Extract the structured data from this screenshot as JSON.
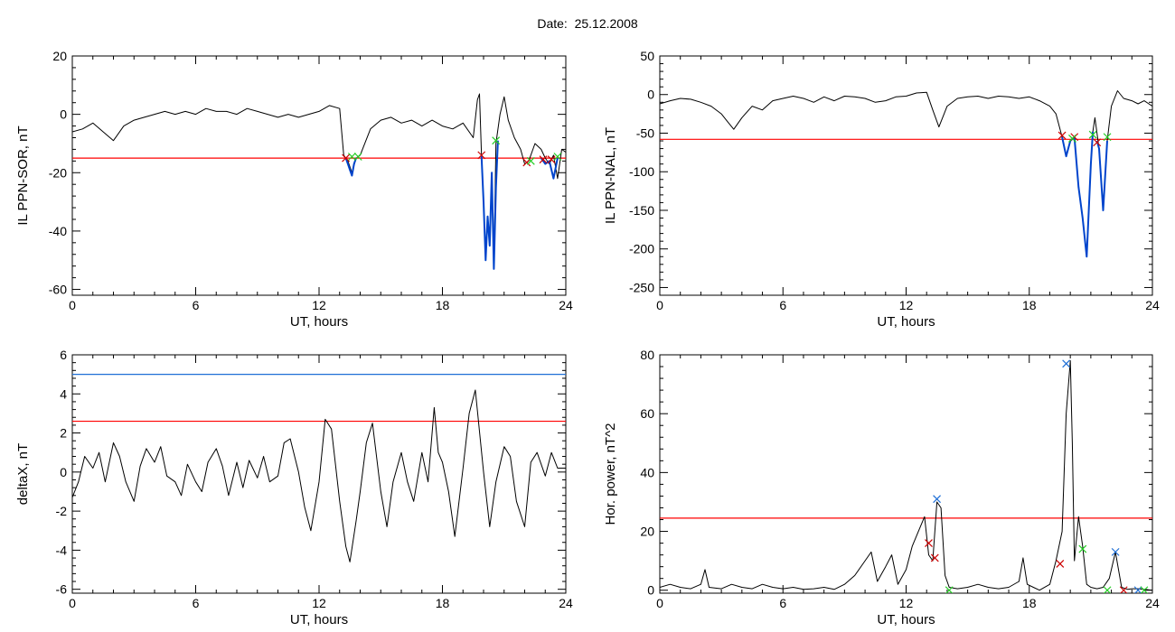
{
  "page_title": "Date:  25.12.2008",
  "chart_data": [
    {
      "type": "line",
      "xlabel": "UT, hours",
      "ylabel": "IL PPN-SOR, nT",
      "xlim": [
        0,
        24
      ],
      "ylim": [
        -62,
        20
      ],
      "xticks": [
        0,
        6,
        12,
        18,
        24
      ],
      "yticks": [
        -60,
        -40,
        -20,
        0,
        20
      ],
      "colors": {
        "trace": "#000000",
        "threshold": "#ff0000",
        "highlight": "#0044cc",
        "start_marker": "#cc0000",
        "end_marker": "#22cc22"
      },
      "threshold": -15,
      "series": [
        {
          "role": "trace",
          "x": [
            0,
            0.5,
            1,
            1.5,
            2,
            2.5,
            3,
            3.5,
            4,
            4.5,
            5,
            5.5,
            6,
            6.5,
            7,
            7.5,
            8,
            8.5,
            9,
            9.5,
            10,
            10.5,
            11,
            11.5,
            12,
            12.5,
            13,
            13.2,
            13.4,
            13.6,
            13.8,
            14,
            14.5,
            15,
            15.5,
            16,
            16.5,
            17,
            17.5,
            18,
            18.5,
            19,
            19.5,
            19.7,
            19.8,
            19.9,
            20,
            20.1,
            20.2,
            20.3,
            20.4,
            20.5,
            20.6,
            20.8,
            21,
            21.2,
            21.5,
            21.8,
            22,
            22.2,
            22.5,
            22.8,
            23,
            23.2,
            23.4,
            23.6,
            23.8,
            24
          ],
          "y": [
            -6,
            -5,
            -3,
            -6,
            -9,
            -4,
            -2,
            -1,
            0,
            1,
            0,
            1,
            0,
            2,
            1,
            1,
            0,
            2,
            1,
            0,
            -1,
            0,
            -1,
            0,
            1,
            3,
            2,
            -14,
            -16,
            -20,
            -15,
            -14,
            -5,
            -2,
            -1,
            -3,
            -2,
            -4,
            -2,
            -4,
            -5,
            -3,
            -8,
            5,
            7,
            -14,
            -30,
            -50,
            -35,
            -45,
            -20,
            -53,
            -10,
            0,
            6,
            -2,
            -8,
            -12,
            -17,
            -16,
            -10,
            -12,
            -15,
            -17,
            -14,
            -22,
            -12,
            -13
          ]
        },
        {
          "role": "highlight",
          "x": [
            13.3,
            13.4,
            13.5,
            13.6,
            13.7,
            13.8
          ],
          "y": [
            -15,
            -17,
            -19,
            -21,
            -17,
            -15
          ]
        },
        {
          "role": "highlight",
          "x": [
            19.9,
            20,
            20.1,
            20.2,
            20.3,
            20.4,
            20.5,
            20.6,
            20.7
          ],
          "y": [
            -14,
            -30,
            -50,
            -35,
            -45,
            -20,
            -53,
            -25,
            -9
          ]
        },
        {
          "role": "highlight",
          "x": [
            22.8,
            23,
            23.2,
            23.4,
            23.6
          ],
          "y": [
            -15,
            -17,
            -16,
            -22,
            -15
          ]
        }
      ],
      "markers": {
        "start": {
          "x": [
            13.3,
            19.9,
            22.1,
            22.9,
            23.3
          ],
          "y": [
            -15,
            -14,
            -16.5,
            -15.5,
            -15.5
          ]
        },
        "end": {
          "x": [
            13.6,
            13.9,
            20.6,
            22.3,
            23.6
          ],
          "y": [
            -14.5,
            -14.5,
            -9,
            -16,
            -14.5
          ]
        }
      }
    },
    {
      "type": "line",
      "xlabel": "UT, hours",
      "ylabel": "IL PPN-NAL, nT",
      "xlim": [
        0,
        24
      ],
      "ylim": [
        -260,
        50
      ],
      "xticks": [
        0,
        6,
        12,
        18,
        24
      ],
      "yticks": [
        -250,
        -200,
        -150,
        -100,
        -50,
        0,
        50
      ],
      "colors": {
        "trace": "#000000",
        "threshold": "#ff0000",
        "highlight": "#0044cc",
        "start_marker": "#cc0000",
        "end_marker": "#22cc22"
      },
      "threshold": -58,
      "series": [
        {
          "role": "trace",
          "x": [
            0,
            0.5,
            1,
            1.5,
            2,
            2.5,
            3,
            3.3,
            3.6,
            4,
            4.5,
            5,
            5.5,
            6,
            6.5,
            7,
            7.5,
            8,
            8.5,
            9,
            9.5,
            10,
            10.5,
            11,
            11.5,
            12,
            12.5,
            13,
            13.3,
            13.6,
            14,
            14.5,
            15,
            15.5,
            16,
            16.5,
            17,
            17.5,
            18,
            18.5,
            19,
            19.3,
            19.6,
            19.8,
            20,
            20.2,
            20.4,
            20.6,
            20.8,
            21,
            21.1,
            21.2,
            21.4,
            21.6,
            21.8,
            22,
            22.3,
            22.6,
            23,
            23.3,
            23.6,
            24
          ],
          "y": [
            -12,
            -8,
            -5,
            -6,
            -10,
            -15,
            -25,
            -35,
            -45,
            -30,
            -15,
            -20,
            -8,
            -5,
            -2,
            -5,
            -10,
            -3,
            -8,
            -2,
            -3,
            -5,
            -10,
            -8,
            -3,
            -2,
            2,
            3,
            -20,
            -42,
            -15,
            -5,
            -3,
            -2,
            -5,
            -2,
            -3,
            -5,
            -3,
            -8,
            -15,
            -25,
            -55,
            -80,
            -60,
            -55,
            -120,
            -160,
            -210,
            -90,
            -48,
            -30,
            -70,
            -150,
            -60,
            -15,
            5,
            -5,
            -8,
            -12,
            -8,
            -15
          ]
        },
        {
          "role": "highlight",
          "x": [
            19.6,
            19.8,
            20,
            20.2,
            20.4,
            20.6,
            20.8,
            21,
            21.1
          ],
          "y": [
            -55,
            -80,
            -60,
            -55,
            -120,
            -160,
            -210,
            -90,
            -48
          ]
        },
        {
          "role": "highlight",
          "x": [
            21.3,
            21.4,
            21.6,
            21.8
          ],
          "y": [
            -60,
            -70,
            -150,
            -60
          ]
        }
      ],
      "markers": {
        "start": {
          "x": [
            19.6,
            20.2,
            21.3
          ],
          "y": [
            -53,
            -55,
            -62
          ]
        },
        "end": {
          "x": [
            20.1,
            21.1,
            21.8
          ],
          "y": [
            -57,
            -52,
            -55
          ]
        }
      }
    },
    {
      "type": "line",
      "xlabel": "UT, hours",
      "ylabel": "deltaX, nT",
      "xlim": [
        0,
        24
      ],
      "ylim": [
        -6.2,
        6
      ],
      "xticks": [
        0,
        6,
        12,
        18,
        24
      ],
      "yticks": [
        -6,
        -4,
        -2,
        0,
        2,
        4,
        6
      ],
      "colors": {
        "trace": "#000000",
        "threshold": "#ff0000",
        "upper_threshold": "#1f6fd6"
      },
      "threshold": 2.6,
      "upper_threshold": 5.0,
      "series": [
        {
          "role": "trace",
          "x": [
            0,
            0.3,
            0.6,
            1,
            1.3,
            1.6,
            2,
            2.3,
            2.6,
            3,
            3.3,
            3.6,
            4,
            4.3,
            4.6,
            5,
            5.3,
            5.6,
            6,
            6.3,
            6.6,
            7,
            7.3,
            7.6,
            8,
            8.3,
            8.6,
            9,
            9.3,
            9.6,
            10,
            10.3,
            10.6,
            11,
            11.3,
            11.6,
            12,
            12.3,
            12.6,
            13,
            13.3,
            13.5,
            13.8,
            14,
            14.3,
            14.6,
            15,
            15.3,
            15.6,
            16,
            16.3,
            16.6,
            17,
            17.3,
            17.6,
            17.8,
            18,
            18.3,
            18.6,
            19,
            19.3,
            19.6,
            20,
            20.3,
            20.6,
            21,
            21.3,
            21.6,
            22,
            22.3,
            22.6,
            23,
            23.3,
            23.6,
            24
          ],
          "y": [
            -1.3,
            -0.5,
            0.8,
            0.2,
            1.0,
            -0.5,
            1.5,
            0.8,
            -0.5,
            -1.5,
            0.3,
            1.2,
            0.5,
            1.3,
            -0.2,
            -0.5,
            -1.2,
            0.4,
            -0.5,
            -1.0,
            0.5,
            1.2,
            0.3,
            -1.2,
            0.5,
            -0.8,
            0.6,
            -0.3,
            0.8,
            -0.5,
            -0.2,
            1.5,
            1.7,
            0,
            -1.8,
            -3.0,
            -0.5,
            2.7,
            2.2,
            -1.5,
            -3.8,
            -4.6,
            -2.5,
            -1.0,
            1.5,
            2.5,
            -1.0,
            -2.8,
            -0.5,
            1.0,
            -0.5,
            -1.5,
            1.0,
            -0.5,
            3.3,
            1.0,
            0.5,
            -1.0,
            -3.3,
            0.2,
            3.0,
            4.2,
            0.0,
            -2.8,
            -0.5,
            1.3,
            0.8,
            -1.5,
            -2.8,
            0.5,
            1.0,
            -0.2,
            1.0,
            0.2,
            0.2
          ]
        }
      ]
    },
    {
      "type": "line",
      "xlabel": "UT, hours",
      "ylabel": "Hor. power, nT^2",
      "xlim": [
        0,
        24
      ],
      "ylim": [
        -1,
        80
      ],
      "xticks": [
        0,
        6,
        12,
        18,
        24
      ],
      "yticks": [
        0,
        20,
        40,
        60,
        80
      ],
      "colors": {
        "trace": "#000000",
        "threshold": "#ff0000",
        "peak_marker": "#1f6fd6",
        "start_marker": "#cc0000",
        "end_marker": "#22cc22"
      },
      "threshold": 24.5,
      "series": [
        {
          "role": "trace",
          "x": [
            0,
            0.5,
            1,
            1.5,
            2,
            2.2,
            2.4,
            3,
            3.5,
            4,
            4.5,
            5,
            5.5,
            6,
            6.5,
            7,
            7.5,
            8,
            8.5,
            9,
            9.5,
            10,
            10.3,
            10.6,
            11,
            11.3,
            11.6,
            12,
            12.3,
            12.6,
            12.9,
            13.1,
            13.3,
            13.5,
            13.7,
            13.9,
            14.1,
            14.5,
            15,
            15.5,
            16,
            16.5,
            17,
            17.5,
            17.7,
            17.9,
            18.2,
            18.5,
            19,
            19.3,
            19.6,
            19.8,
            20,
            20.1,
            20.2,
            20.4,
            20.6,
            20.8,
            21,
            21.3,
            21.6,
            21.9,
            22.2,
            22.5,
            22.8,
            23,
            23.3,
            23.6,
            24
          ],
          "y": [
            1,
            2,
            1,
            0.5,
            2,
            7,
            1,
            0.5,
            2,
            1,
            0.5,
            2,
            1,
            0.5,
            1,
            0.3,
            0.5,
            1,
            0.3,
            2,
            5,
            10,
            13,
            3,
            8,
            12,
            2,
            7,
            15,
            20,
            25,
            12,
            10,
            30,
            28,
            5,
            1,
            0.5,
            1,
            2,
            1,
            0.5,
            1,
            3,
            11,
            2,
            1,
            0,
            2,
            10,
            20,
            60,
            78,
            50,
            10,
            25,
            15,
            2,
            1,
            0.5,
            1,
            4,
            13,
            1,
            0.3,
            0.5,
            0.5,
            0.3,
            0
          ]
        }
      ],
      "markers": {
        "peak": {
          "x": [
            13.5,
            19.8,
            22.2,
            23.3
          ],
          "y": [
            31,
            77,
            13,
            0
          ]
        },
        "start": {
          "x": [
            13.1,
            13.4,
            19.5,
            22.6
          ],
          "y": [
            16,
            11,
            9,
            0
          ]
        },
        "end": {
          "x": [
            14.1,
            20.6,
            21.8,
            23.6
          ],
          "y": [
            0,
            14,
            0,
            0
          ]
        }
      }
    }
  ]
}
